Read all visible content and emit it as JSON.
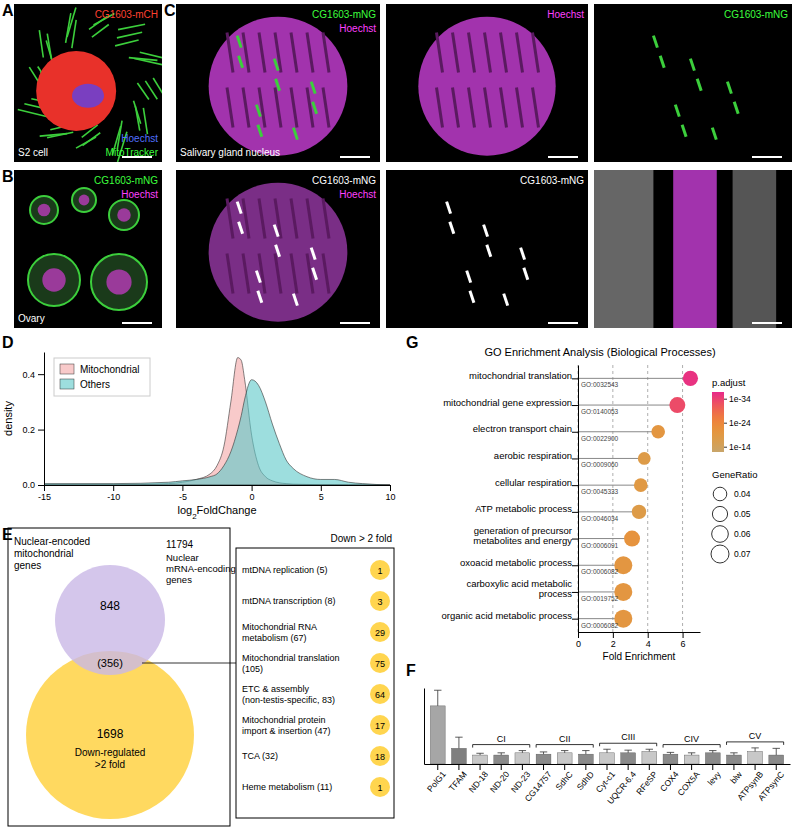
{
  "panel_labels": [
    "A",
    "B",
    "C",
    "D",
    "E",
    "F",
    "G"
  ],
  "images": [
    {
      "labels": [
        {
          "text": "CG1603-mCH",
          "color": "#ff4030"
        },
        {
          "text": "Hoechst",
          "color": "#5070ff"
        },
        {
          "text": "MitoTracker",
          "color": "#3dff3d"
        },
        {
          "text": "S2 cell",
          "color": "#ffffff"
        }
      ]
    },
    {
      "labels": [
        {
          "text": "CG1603-mNG",
          "color": "#3dff3d"
        },
        {
          "text": "Hoechst",
          "color": "#ff40ff"
        },
        {
          "text": "Ovary",
          "color": "#ffffff"
        }
      ]
    },
    {
      "labels": [
        {
          "text": "CG1603-mNG",
          "color": "#3dff3d"
        },
        {
          "text": "Hoechst",
          "color": "#ff40ff"
        },
        {
          "text": "Salivary gland nucleus",
          "color": "#ffffff"
        }
      ]
    },
    {
      "labels": [
        {
          "text": "Hoechst",
          "color": "#ff40ff"
        }
      ]
    },
    {
      "labels": [
        {
          "text": "CG1603-mNG",
          "color": "#3dff3d"
        }
      ]
    },
    {
      "labels": [
        {
          "text": "CG1603-mNG",
          "color": "#ffffff"
        },
        {
          "text": "Hoechst",
          "color": "#ff40ff"
        }
      ]
    },
    {
      "labels": [
        {
          "text": "CG1603-mNG",
          "color": "#ffffff"
        }
      ]
    },
    {
      "labels": []
    }
  ],
  "chart_data": [
    {
      "type": "area",
      "x": [
        -15,
        -10,
        -6,
        -5,
        -4,
        -3,
        -2.5,
        -2,
        -1.5,
        -1,
        -0.75,
        -0.5,
        0,
        0.5,
        1,
        1.5,
        2,
        2.5,
        3,
        4,
        5,
        6,
        7,
        8,
        10
      ],
      "series": [
        {
          "name": "Mitochondrial",
          "color": "#f4a6a6",
          "values": [
            0,
            0,
            0.005,
            0.01,
            0.02,
            0.04,
            0.07,
            0.14,
            0.3,
            0.46,
            0.45,
            0.38,
            0.18,
            0.07,
            0.03,
            0.015,
            0.008,
            0.005,
            0.003,
            0.002,
            0.001,
            0.001,
            0,
            0,
            0
          ]
        },
        {
          "name": "Others",
          "color": "#5cc8c8",
          "values": [
            0.005,
            0.005,
            0.01,
            0.015,
            0.02,
            0.03,
            0.04,
            0.07,
            0.12,
            0.2,
            0.25,
            0.31,
            0.38,
            0.36,
            0.3,
            0.22,
            0.15,
            0.09,
            0.06,
            0.03,
            0.02,
            0.02,
            0.01,
            0.005,
            0
          ]
        }
      ],
      "xlabel": "log2FoldChange",
      "ylabel": "density",
      "xlim": [
        -15,
        10
      ],
      "xticks": [
        -15,
        -10,
        -5,
        0,
        5,
        10
      ],
      "ylim": [
        0,
        0.48
      ],
      "yticks": [
        {
          "value": 0,
          "label": "0.0"
        },
        {
          "value": 0.2,
          "label": "0.2"
        },
        {
          "value": 0.4,
          "label": "0.4"
        }
      ],
      "legend": "upper left",
      "grid": false
    },
    {
      "type": "dot",
      "orientation": "horizontal",
      "title": "GO Enrichment Analysis (Biological Processes)",
      "categories": [
        "mitochondrial translation",
        "mitochondrial gene expression",
        "electron transport chain",
        "aerobic respiration",
        "cellular respiration",
        "ATP metabolic process",
        "generation of precursor metabolites and energy",
        "oxoacid metabolic process",
        "carboxylic acid metabolic process",
        "organic acid metabolic process"
      ],
      "go_ids": [
        "GO:0032543",
        "GO:0140053",
        "GO:0022900",
        "GO:0009060",
        "GO:0045333",
        "GO:0046034",
        "GO:0006091",
        "GO:0006082",
        "GO:0019752",
        "GO:0006082"
      ],
      "values": [
        6.45,
        5.7,
        4.6,
        3.8,
        3.6,
        3.5,
        3.1,
        2.6,
        2.6,
        2.6
      ],
      "sizes": [
        0.05,
        0.055,
        0.04,
        0.035,
        0.04,
        0.045,
        0.055,
        0.07,
        0.07,
        0.07
      ],
      "p_adjust": [
        1e-36,
        1e-33,
        1e-20,
        1e-18,
        1e-19,
        1e-18,
        1e-21,
        1e-20,
        1e-20,
        1e-20
      ],
      "xlabel": "Fold Enrichment",
      "xlim": [
        0,
        7
      ],
      "xticks": [
        0,
        2,
        4,
        6
      ],
      "grid": true,
      "colorbar": {
        "title": "p.adjust",
        "range": [
          1e-37,
          1e-12
        ],
        "ticks": [
          {
            "value": 1e-34,
            "label": "1e-34"
          },
          {
            "value": 1e-24,
            "label": "1e-24"
          },
          {
            "value": 1e-14,
            "label": "1e-14"
          }
        ]
      },
      "size_legend": {
        "title": "GeneRatio",
        "values": [
          0.04,
          0.05,
          0.06,
          0.07
        ]
      }
    },
    {
      "type": "bar",
      "categories": [
        "PolG1",
        "TFAM",
        "ND-18",
        "ND-20",
        "ND-23",
        "CG14757",
        "SdhC",
        "SdhD",
        "Cyt-c1",
        "UQCR-6.4",
        "RFeSP",
        "COX4",
        "COX5A",
        "levy",
        "blw",
        "ATPsynB",
        "ATPsynC"
      ],
      "values": [
        1.3,
        0.35,
        0.2,
        0.2,
        0.25,
        0.22,
        0.25,
        0.22,
        0.25,
        0.25,
        0.28,
        0.22,
        0.2,
        0.25,
        0.2,
        0.28,
        0.2
      ],
      "errors": [
        0.35,
        0.25,
        0.04,
        0.05,
        0.05,
        0.05,
        0.05,
        0.08,
        0.08,
        0.06,
        0.05,
        0.04,
        0.05,
        0.05,
        0.05,
        0.08,
        0.15
      ],
      "colors": [
        "#a6a6a6",
        "#7f7f7f",
        "#c8c8c8",
        "#8a8a8a",
        "#c8c8c8",
        "#8a8a8a",
        "#c8c8c8",
        "#8a8a8a",
        "#c8c8c8",
        "#8a8a8a",
        "#c8c8c8",
        "#8a8a8a",
        "#c8c8c8",
        "#8a8a8a",
        "#8a8a8a",
        "#c8c8c8",
        "#8a8a8a"
      ],
      "ylim": [
        0,
        1.7
      ],
      "tick_labels": "x",
      "groups": [
        {
          "label": "CI",
          "categories": [
            "ND-18",
            "ND-20",
            "ND-23"
          ]
        },
        {
          "label": "CII",
          "categories": [
            "CG14757",
            "SdhC",
            "SdhD"
          ]
        },
        {
          "label": "CIII",
          "categories": [
            "Cyt-c1",
            "UQCR-6.4",
            "RFeSP"
          ]
        },
        {
          "label": "CIV",
          "categories": [
            "COX4",
            "COX5A",
            "levy"
          ]
        },
        {
          "label": "CV",
          "categories": [
            "blw",
            "ATPsynB",
            "ATPsynC"
          ]
        }
      ]
    }
  ],
  "venn": {
    "sets": [
      {
        "label": "Nuclear-encoded mitochondrial genes",
        "value": 848,
        "color": "#c9b8e6"
      },
      {
        "label": "Down-regulated >2 fold",
        "value": 1698,
        "color": "#ffd54f"
      }
    ],
    "intersection": {
      "value": 356,
      "label": "(356)"
    },
    "universe": {
      "value": 11794,
      "label": "Nuclear mRNA-encoding genes"
    }
  },
  "table": {
    "header": "Down > 2 fold",
    "rows": [
      {
        "label": "mtDNA replication (5)",
        "value": 1
      },
      {
        "label": "mtDNA transcription (8)",
        "value": 3
      },
      {
        "label": "Mitochondrial RNA metabolism (67)",
        "value": 29
      },
      {
        "label": "Mitochondrial translation (105)",
        "value": 75
      },
      {
        "label": "ETC & assembly (non-testis-specific, 83)",
        "value": 64
      },
      {
        "label": "Mitochondrial protein import & insertion (47)",
        "value": 17
      },
      {
        "label": "TCA (32)",
        "value": 18
      },
      {
        "label": "Heme metabolism (11)",
        "value": 1
      }
    ]
  }
}
